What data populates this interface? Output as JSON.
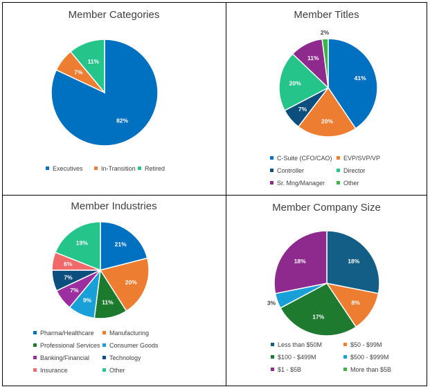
{
  "chart_data": [
    {
      "type": "pie",
      "title": "Member Categories",
      "categories": [
        "Executives",
        "In-Transition",
        "Retired"
      ],
      "values": [
        82,
        7,
        11
      ],
      "labels": [
        "82%",
        "7%",
        "11%"
      ],
      "colors": [
        "#0070C0",
        "#ED7D31",
        "#25C48A"
      ],
      "legend": "bottom"
    },
    {
      "type": "pie",
      "title": "Member Titles",
      "categories": [
        "C-Suite (CFO/CAO)",
        "EVP/SVP/VP",
        "Controller",
        "Director",
        "Sr. Mng/Manager",
        "Other"
      ],
      "values": [
        41,
        20,
        7,
        20,
        11,
        2
      ],
      "labels": [
        "41%",
        "20%",
        "7%",
        "20%",
        "11%",
        "2%"
      ],
      "colors": [
        "#0070C0",
        "#ED7D31",
        "#0C4F7F",
        "#25C48A",
        "#8E2A8E",
        "#3BB54A"
      ],
      "legend": "bottom"
    },
    {
      "type": "pie",
      "title": "Member Industries",
      "categories": [
        "Pharma/Healthcare",
        "Manufacturing",
        "Professional Services",
        "Consumer Goods",
        "Banking/Financial",
        "Technology",
        "Insurance",
        "Other"
      ],
      "values": [
        21,
        20,
        11,
        9,
        7,
        7,
        6,
        19
      ],
      "labels": [
        "21%",
        "20%",
        "11%",
        "9%",
        "7%",
        "7%",
        "6%",
        "19%"
      ],
      "colors": [
        "#0070C0",
        "#ED7D31",
        "#1B7A2B",
        "#1AA0D8",
        "#9B2FA0",
        "#0C4F7F",
        "#F06A6A",
        "#25C48A"
      ],
      "legend": "bottom"
    },
    {
      "type": "pie",
      "title": "Member Company Size",
      "categories": [
        "Less than $50M",
        "$50 - $99M",
        "$100 - $499M",
        "$500 - $999M",
        "$1 - $5B",
        "More than $5B"
      ],
      "values": [
        18,
        8,
        17,
        3,
        18,
        0
      ],
      "labels": [
        "18%",
        "8%",
        "17%",
        "3%",
        "18%",
        ""
      ],
      "colors": [
        "#135E86",
        "#ED7D31",
        "#1E7A2E",
        "#1AA0D8",
        "#8E2A8E",
        "#3BB54A"
      ],
      "legend": "bottom"
    }
  ]
}
